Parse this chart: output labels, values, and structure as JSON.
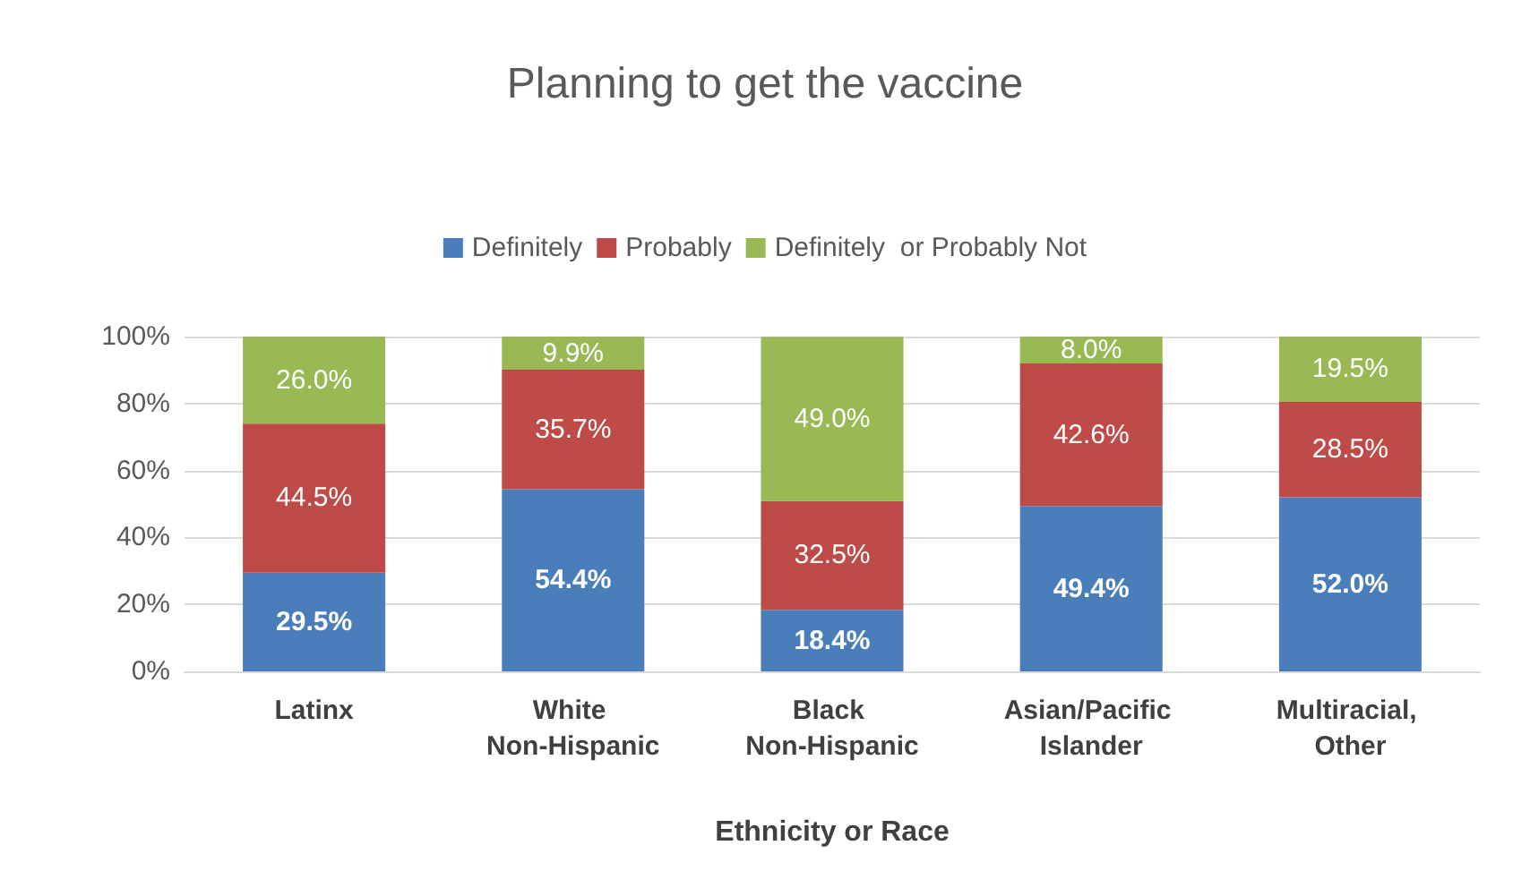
{
  "chart_data": {
    "type": "bar",
    "title": "Planning to get the vaccine",
    "xlabel": "Ethnicity or Race",
    "categories": [
      "Latinx",
      "White Non-Hispanic",
      "Black Non-Hispanic",
      "Asian/Pacific Islander",
      "Multiracial, Other"
    ],
    "series": [
      {
        "name": "Definitely",
        "color": "#4a7ebb",
        "values": [
          29.5,
          54.4,
          18.4,
          49.4,
          52.0
        ],
        "value_labels": [
          "29.5%",
          "54.4%",
          "18.4%",
          "49.4%",
          "52.0%"
        ]
      },
      {
        "name": "Probably",
        "color": "#be4b48",
        "values": [
          44.5,
          35.7,
          32.5,
          42.6,
          28.5
        ],
        "value_labels": [
          "44.5%",
          "35.7%",
          "32.5%",
          "42.6%",
          "28.5%"
        ]
      },
      {
        "name": "Definitely  or Probably Not",
        "color": "#98b954",
        "values": [
          26.0,
          9.9,
          49.0,
          8.0,
          19.5
        ],
        "value_labels": [
          "26.0%",
          "9.9%",
          "49.0%",
          "8.0%",
          "19.5%"
        ]
      }
    ],
    "stacked": true,
    "ylim": [
      0,
      100
    ],
    "yticks": [
      {
        "value": 0,
        "label": "0%"
      },
      {
        "value": 20,
        "label": "20%"
      },
      {
        "value": 40,
        "label": "40%"
      },
      {
        "value": 60,
        "label": "60%"
      },
      {
        "value": 80,
        "label": "80%"
      },
      {
        "value": 100,
        "label": "100%"
      }
    ],
    "grid": "y",
    "legend": "top"
  }
}
